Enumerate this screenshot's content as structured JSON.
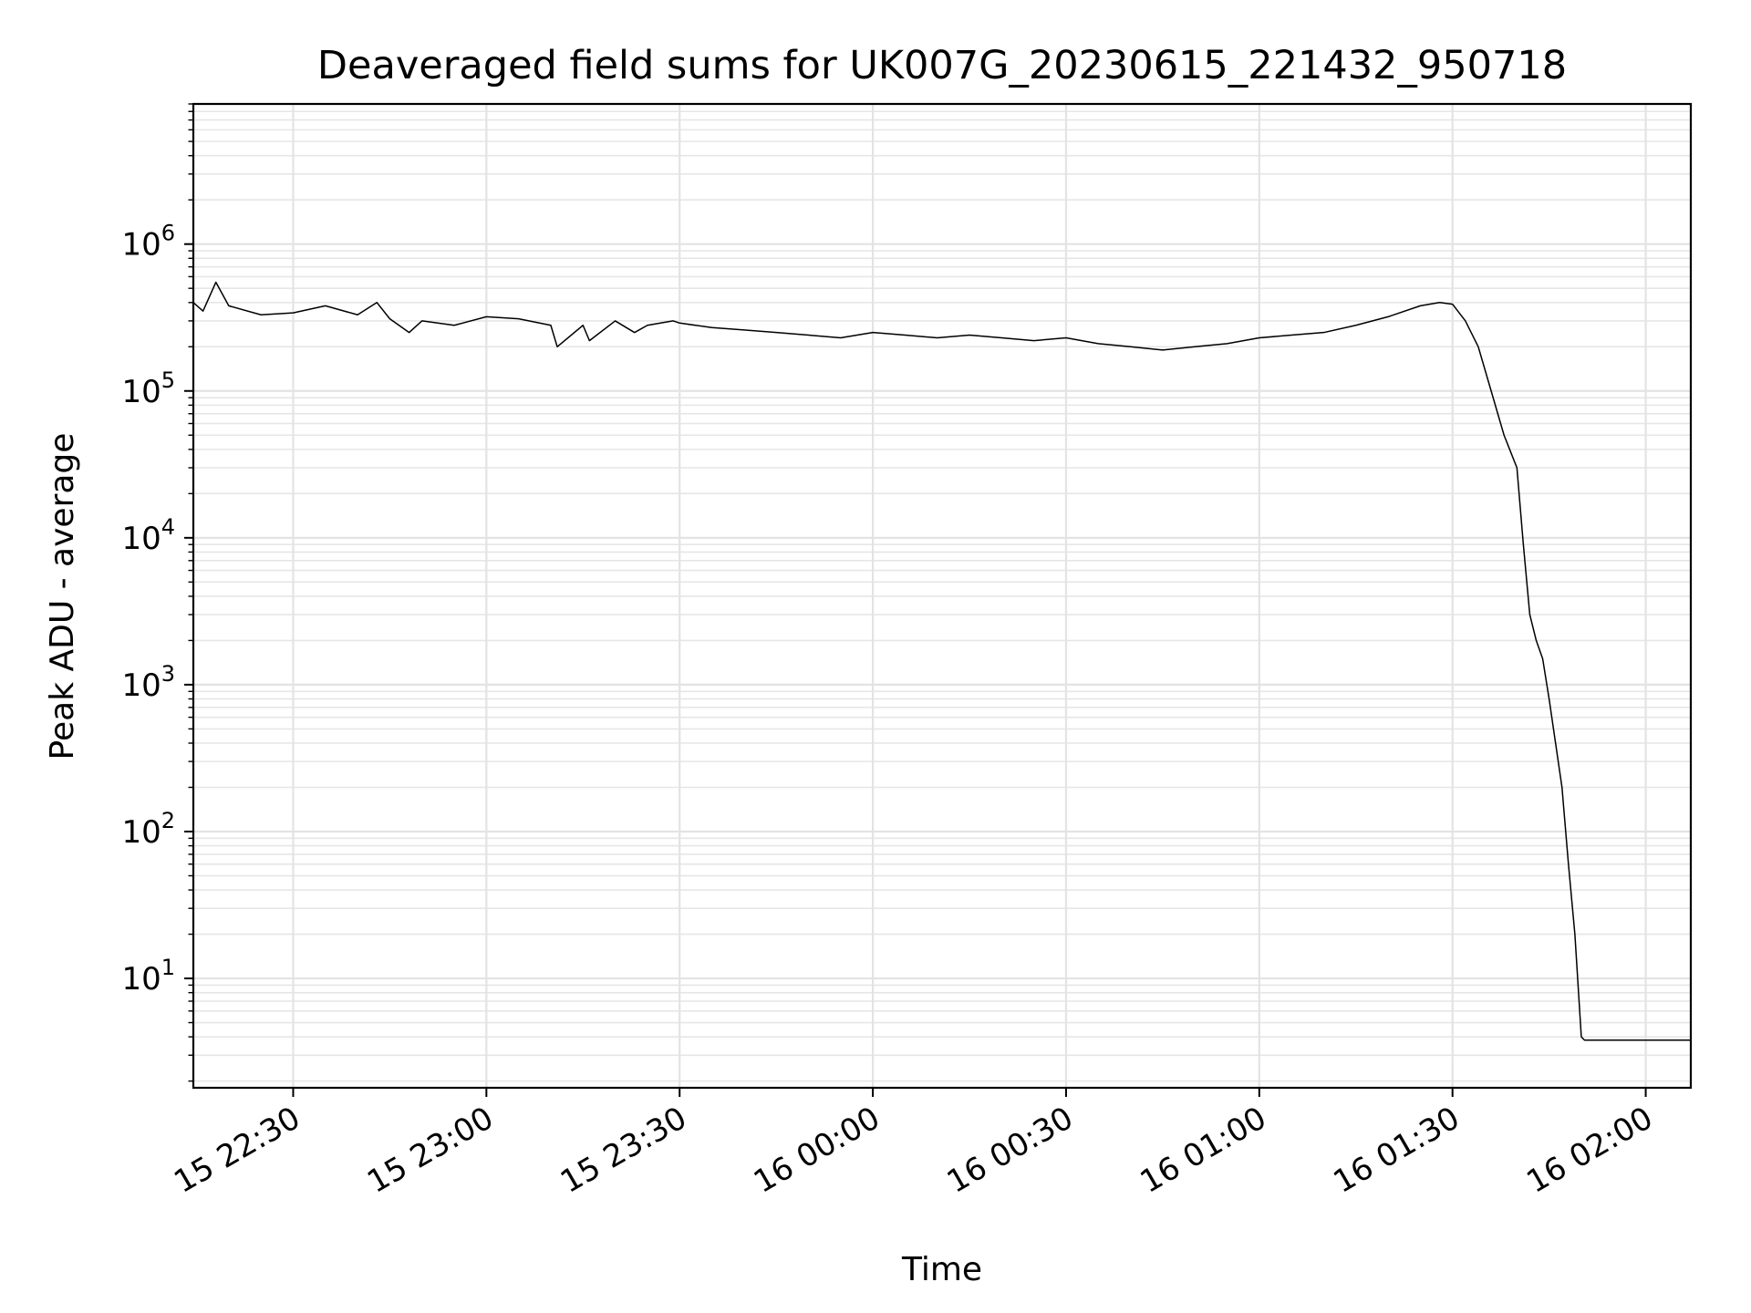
{
  "chart_data": {
    "type": "line",
    "title": "Deaveraged field sums for UK007G_20230615_221432_950718",
    "xlabel": "Time",
    "ylabel": "Peak ADU - average",
    "yscale": "log",
    "grid": "on (major and minor)",
    "legend": "none",
    "line_color": "#000000",
    "xlim": [
      "2023-06-15 22:14:30",
      "2023-06-16 02:07:00"
    ],
    "ylim": [
      1.8,
      9000000
    ],
    "x_ticks": [
      "2023-06-15 22:30",
      "2023-06-15 23:00",
      "2023-06-15 23:30",
      "2023-06-16 00:00",
      "2023-06-16 00:30",
      "2023-06-16 01:00",
      "2023-06-16 01:30",
      "2023-06-16 02:00"
    ],
    "x_tick_labels": [
      "15 22:30",
      "15 23:00",
      "15 23:30",
      "16 00:00",
      "16 00:30",
      "16 01:00",
      "16 01:30",
      "16 02:00"
    ],
    "y_ticks": [
      10,
      100,
      1000,
      10000,
      100000,
      1000000
    ],
    "y_tick_labels": [
      {
        "base": "10",
        "exp": "1"
      },
      {
        "base": "10",
        "exp": "2"
      },
      {
        "base": "10",
        "exp": "3"
      },
      {
        "base": "10",
        "exp": "4"
      },
      {
        "base": "10",
        "exp": "5"
      },
      {
        "base": "10",
        "exp": "6"
      }
    ],
    "series": [
      {
        "x": [
          "2023-06-15 22:14:30",
          "2023-06-15 22:16:00",
          "2023-06-15 22:18:00",
          "2023-06-15 22:20:00",
          "2023-06-15 22:25:00",
          "2023-06-15 22:30:00",
          "2023-06-15 22:35:00",
          "2023-06-15 22:40:00",
          "2023-06-15 22:43:00",
          "2023-06-15 22:45:00",
          "2023-06-15 22:48:00",
          "2023-06-15 22:50:00",
          "2023-06-15 22:55:00",
          "2023-06-15 23:00:00",
          "2023-06-15 23:05:00",
          "2023-06-15 23:10:00",
          "2023-06-15 23:11:00",
          "2023-06-15 23:15:00",
          "2023-06-15 23:16:00",
          "2023-06-15 23:20:00",
          "2023-06-15 23:23:00",
          "2023-06-15 23:25:00",
          "2023-06-15 23:29:00",
          "2023-06-15 23:30:00",
          "2023-06-15 23:35:00",
          "2023-06-15 23:40:00",
          "2023-06-15 23:45:00",
          "2023-06-15 23:50:00",
          "2023-06-15 23:55:00",
          "2023-06-16 00:00:00",
          "2023-06-16 00:05:00",
          "2023-06-16 00:10:00",
          "2023-06-16 00:15:00",
          "2023-06-16 00:20:00",
          "2023-06-16 00:25:00",
          "2023-06-16 00:30:00",
          "2023-06-16 00:35:00",
          "2023-06-16 00:40:00",
          "2023-06-16 00:45:00",
          "2023-06-16 00:50:00",
          "2023-06-16 00:55:00",
          "2023-06-16 01:00:00",
          "2023-06-16 01:05:00",
          "2023-06-16 01:10:00",
          "2023-06-16 01:15:00",
          "2023-06-16 01:20:00",
          "2023-06-16 01:25:00",
          "2023-06-16 01:28:00",
          "2023-06-16 01:30:00",
          "2023-06-16 01:32:00",
          "2023-06-16 01:34:00",
          "2023-06-16 01:36:00",
          "2023-06-16 01:38:00",
          "2023-06-16 01:40:00",
          "2023-06-16 01:41:00",
          "2023-06-16 01:42:00",
          "2023-06-16 01:43:00",
          "2023-06-16 01:44:00",
          "2023-06-16 01:45:00",
          "2023-06-16 01:46:00",
          "2023-06-16 01:47:00",
          "2023-06-16 01:48:00",
          "2023-06-16 01:49:00",
          "2023-06-16 01:50:00",
          "2023-06-16 01:50:30",
          "2023-06-16 01:55:00",
          "2023-06-16 02:00:00",
          "2023-06-16 02:07:00"
        ],
        "y": [
          400000,
          350000,
          550000,
          380000,
          330000,
          340000,
          380000,
          330000,
          400000,
          310000,
          250000,
          300000,
          280000,
          320000,
          310000,
          280000,
          200000,
          280000,
          220000,
          300000,
          250000,
          280000,
          300000,
          290000,
          270000,
          260000,
          250000,
          240000,
          230000,
          250000,
          240000,
          230000,
          240000,
          230000,
          220000,
          230000,
          210000,
          200000,
          190000,
          200000,
          210000,
          230000,
          240000,
          250000,
          280000,
          320000,
          380000,
          400000,
          390000,
          300000,
          200000,
          100000,
          50000,
          30000,
          9000,
          3000,
          2000,
          1500,
          800,
          400,
          200,
          60,
          20,
          4,
          3.8,
          3.8,
          3.8,
          3.8
        ]
      }
    ]
  }
}
